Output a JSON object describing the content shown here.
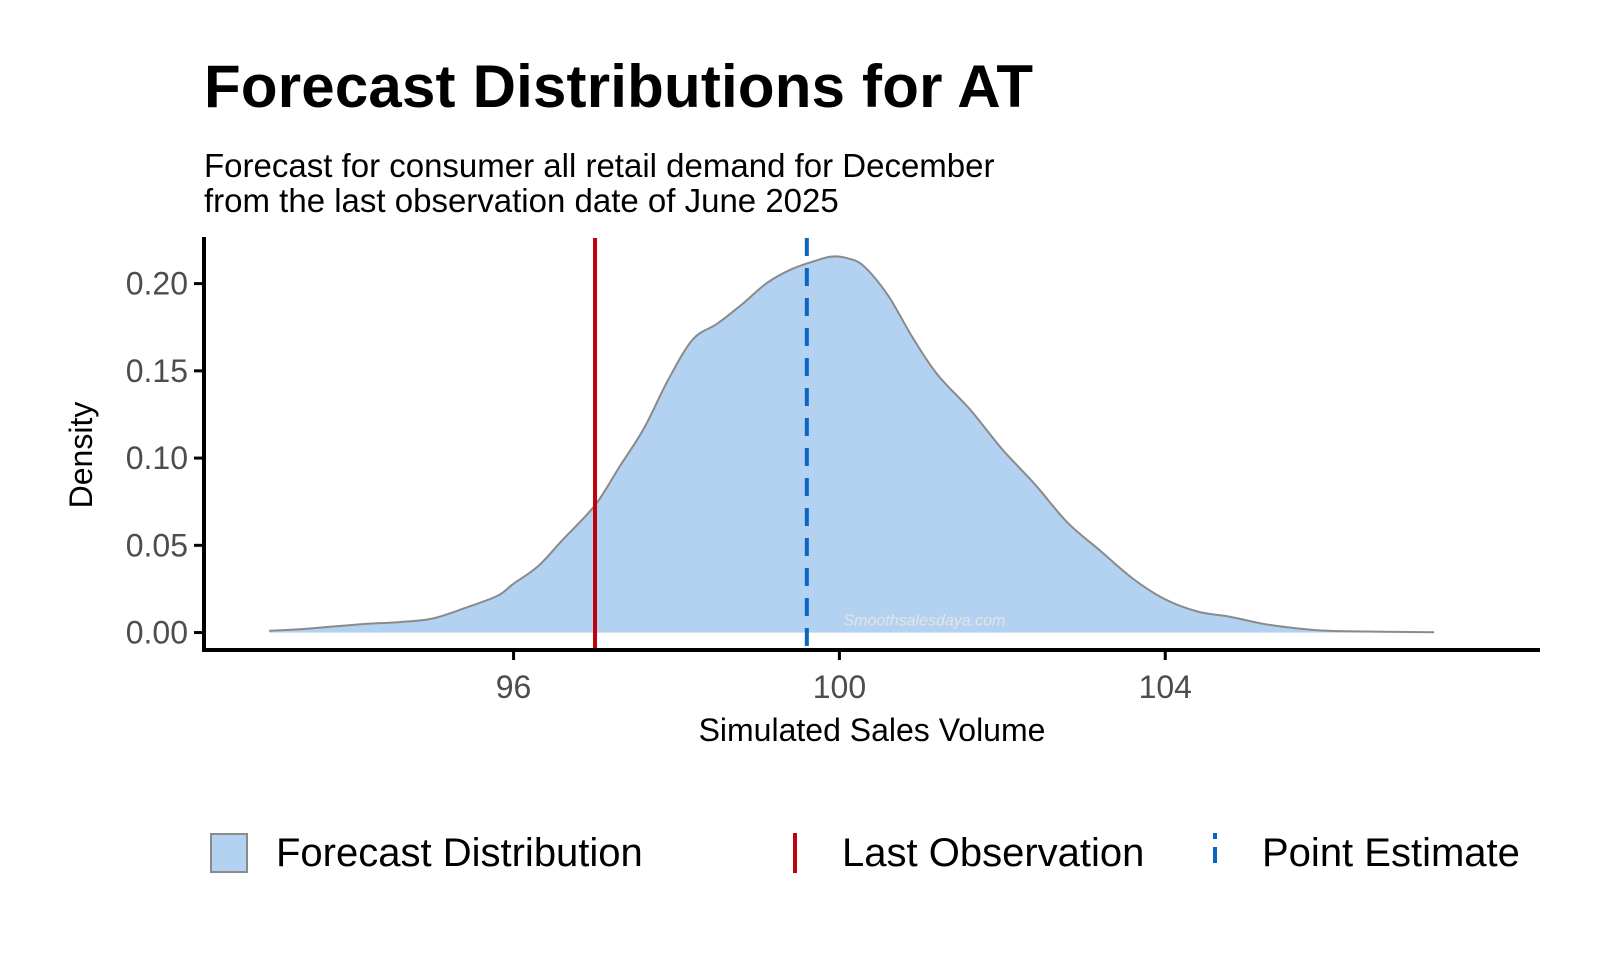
{
  "title": "Forecast Distributions for AT",
  "subtitle_lines": [
    "Forecast for consumer all retail demand for December",
    "from the last observation date of June 2025"
  ],
  "watermark": "Smoothsalesdaya.com",
  "colors": {
    "fill": "#b3d1f0",
    "outline": "#8a8a8a",
    "last_observation": "#c0000b",
    "point_estimate": "#0a66c2",
    "axis": "#000000",
    "tick_label": "#4d4d4d"
  },
  "legend": {
    "position": "bottom",
    "items": [
      {
        "label": "Forecast Distribution",
        "key": "fill"
      },
      {
        "label": "Last Observation",
        "key": "solid-line"
      },
      {
        "label": "Point Estimate",
        "key": "dashed-line"
      }
    ]
  },
  "chart_data": {
    "type": "area",
    "xlabel": "Simulated Sales Volume",
    "ylabel": "Density",
    "xlim": [
      92.2,
      108.6
    ],
    "ylim": [
      -0.01,
      0.225
    ],
    "xticks": [
      96,
      100,
      104
    ],
    "xtick_labels": [
      "96",
      "100",
      "104"
    ],
    "yticks": [
      0.0,
      0.05,
      0.1,
      0.15,
      0.2
    ],
    "ytick_labels": [
      "0.00",
      "0.05",
      "0.10",
      "0.15",
      "0.20"
    ],
    "grid": false,
    "series": [
      {
        "name": "Forecast Distribution",
        "x": [
          93.0,
          93.4,
          93.8,
          94.2,
          94.6,
          95.0,
          95.4,
          95.8,
          96.0,
          96.3,
          96.6,
          97.0,
          97.3,
          97.6,
          97.9,
          98.2,
          98.5,
          98.8,
          99.1,
          99.4,
          99.7,
          99.9,
          100.1,
          100.3,
          100.6,
          100.9,
          101.2,
          101.6,
          102.0,
          102.4,
          102.8,
          103.2,
          103.6,
          104.0,
          104.4,
          104.8,
          105.2,
          105.6,
          106.0,
          106.5,
          107.0,
          107.3
        ],
        "y": [
          0.001,
          0.002,
          0.0035,
          0.005,
          0.006,
          0.008,
          0.014,
          0.021,
          0.028,
          0.038,
          0.053,
          0.073,
          0.095,
          0.117,
          0.145,
          0.168,
          0.177,
          0.188,
          0.2,
          0.208,
          0.213,
          0.2155,
          0.2145,
          0.21,
          0.193,
          0.169,
          0.148,
          0.128,
          0.105,
          0.085,
          0.063,
          0.047,
          0.031,
          0.019,
          0.012,
          0.009,
          0.005,
          0.0025,
          0.001,
          0.0006,
          0.0003,
          0.0002
        ]
      }
    ],
    "reference_lines": [
      {
        "name": "Last Observation",
        "x": 97.0,
        "style": "solid"
      },
      {
        "name": "Point Estimate",
        "x": 99.6,
        "style": "dashed"
      }
    ]
  }
}
